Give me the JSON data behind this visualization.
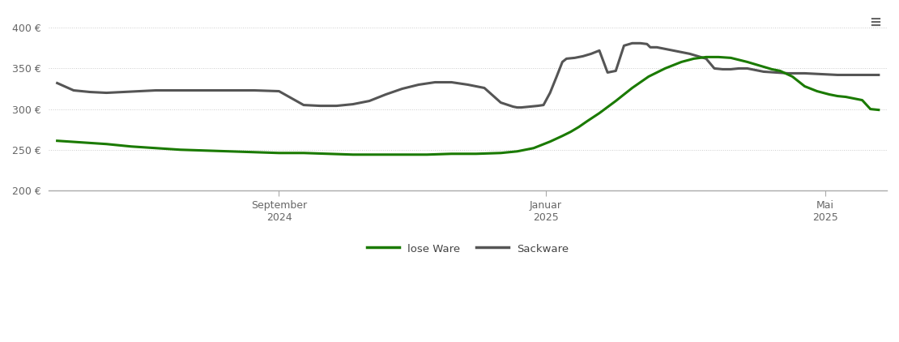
{
  "background_color": "#ffffff",
  "grid_color": "#cccccc",
  "ylim": [
    200,
    415
  ],
  "yticks": [
    200,
    250,
    300,
    350,
    400
  ],
  "lose_ware_color": "#1a7a00",
  "sackware_color": "#555555",
  "lose_ware_label": "lose Ware",
  "sackware_label": "Sackware",
  "line_width": 2.2,
  "xtick_labels": [
    "September\n2024",
    "Januar\n2025",
    "Mai\n2025"
  ],
  "xtick_positions": [
    0.27,
    0.595,
    0.935
  ],
  "xlim": [
    -0.01,
    1.01
  ],
  "lose_ware_x": [
    0.0,
    0.03,
    0.06,
    0.09,
    0.12,
    0.15,
    0.18,
    0.21,
    0.24,
    0.27,
    0.3,
    0.33,
    0.36,
    0.39,
    0.42,
    0.45,
    0.48,
    0.51,
    0.54,
    0.56,
    0.58,
    0.6,
    0.615,
    0.625,
    0.635,
    0.645,
    0.66,
    0.68,
    0.7,
    0.72,
    0.74,
    0.76,
    0.775,
    0.79,
    0.805,
    0.82,
    0.84,
    0.86,
    0.87,
    0.88,
    0.895,
    0.91,
    0.925,
    0.94,
    0.95,
    0.96,
    0.97,
    0.98,
    0.99,
    1.0
  ],
  "lose_ware_y": [
    261,
    259,
    257,
    254,
    252,
    250,
    249,
    248,
    247,
    246,
    246,
    245,
    244,
    244,
    244,
    244,
    245,
    245,
    246,
    248,
    252,
    260,
    267,
    272,
    278,
    285,
    295,
    310,
    326,
    340,
    350,
    358,
    362,
    364,
    364,
    363,
    358,
    352,
    349,
    347,
    340,
    328,
    322,
    318,
    316,
    315,
    313,
    311,
    300,
    299
  ],
  "sackware_x": [
    0.0,
    0.02,
    0.04,
    0.06,
    0.08,
    0.1,
    0.12,
    0.15,
    0.18,
    0.21,
    0.24,
    0.27,
    0.3,
    0.32,
    0.34,
    0.36,
    0.38,
    0.4,
    0.42,
    0.44,
    0.46,
    0.48,
    0.5,
    0.52,
    0.54,
    0.555,
    0.56,
    0.565,
    0.575,
    0.585,
    0.592,
    0.6,
    0.608,
    0.615,
    0.62,
    0.63,
    0.64,
    0.65,
    0.66,
    0.67,
    0.68,
    0.69,
    0.7,
    0.71,
    0.718,
    0.722,
    0.73,
    0.74,
    0.75,
    0.76,
    0.77,
    0.78,
    0.79,
    0.8,
    0.81,
    0.82,
    0.83,
    0.84,
    0.85,
    0.86,
    0.875,
    0.89,
    0.91,
    0.93,
    0.95,
    0.97,
    1.0
  ],
  "sackware_y": [
    332,
    323,
    321,
    320,
    321,
    322,
    323,
    323,
    323,
    323,
    323,
    322,
    305,
    304,
    304,
    306,
    310,
    318,
    325,
    330,
    333,
    333,
    330,
    326,
    308,
    303,
    302,
    302,
    303,
    304,
    305,
    320,
    340,
    358,
    362,
    363,
    365,
    368,
    372,
    345,
    347,
    378,
    381,
    381,
    380,
    376,
    376,
    374,
    372,
    370,
    368,
    365,
    362,
    350,
    349,
    349,
    350,
    350,
    348,
    346,
    345,
    344,
    344,
    343,
    342,
    342,
    342
  ]
}
